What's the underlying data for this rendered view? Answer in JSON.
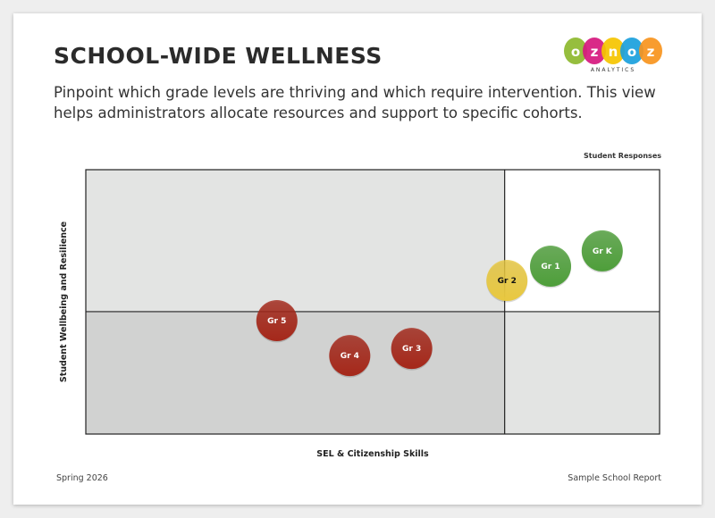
{
  "header": {
    "title": "SCHOOL-WIDE WELLNESS",
    "subtitle": "Pinpoint which grade levels are thriving and which require intervention. This view helps administrators allocate resources and support to specific cohorts."
  },
  "logo": {
    "text": "oznoz",
    "tagline": "ANALYTICS",
    "colors": [
      "#8db92e",
      "#d6187e",
      "#f5c400",
      "#1aa0dc",
      "#f7941d"
    ]
  },
  "footer": {
    "left": "Spring 2026",
    "right": "Sample School Report"
  },
  "chart_data": {
    "type": "scatter",
    "legend": "Student Responses",
    "xlabel": "SEL & Citizenship Skills",
    "ylabel": "Student Wellbeing and Resilience",
    "xlim": [
      0,
      100
    ],
    "ylim": [
      0,
      100
    ],
    "x_divider": 73,
    "y_divider": 46.3,
    "quadrant_colors": {
      "top_left": "#e3e4e3",
      "top_right": "#ffffff",
      "bottom_left": "#d1d2d1",
      "bottom_right": "#e3e4e3"
    },
    "points": [
      {
        "label": "Gr K",
        "x": 90,
        "y": 69.3,
        "color": "#4e9e3a",
        "text_color": "#ffffff"
      },
      {
        "label": "Gr 1",
        "x": 81,
        "y": 63.5,
        "color": "#4e9e3a",
        "text_color": "#ffffff"
      },
      {
        "label": "Gr 2",
        "x": 73.4,
        "y": 58.1,
        "color": "#e8c840",
        "text_color": "#111111"
      },
      {
        "label": "Gr 5",
        "x": 33.3,
        "y": 42.9,
        "color": "#a5281a",
        "text_color": "#ffffff"
      },
      {
        "label": "Gr 4",
        "x": 46,
        "y": 29.7,
        "color": "#a5281a",
        "text_color": "#ffffff"
      },
      {
        "label": "Gr 3",
        "x": 56.8,
        "y": 32.4,
        "color": "#a5281a",
        "text_color": "#ffffff"
      }
    ]
  }
}
